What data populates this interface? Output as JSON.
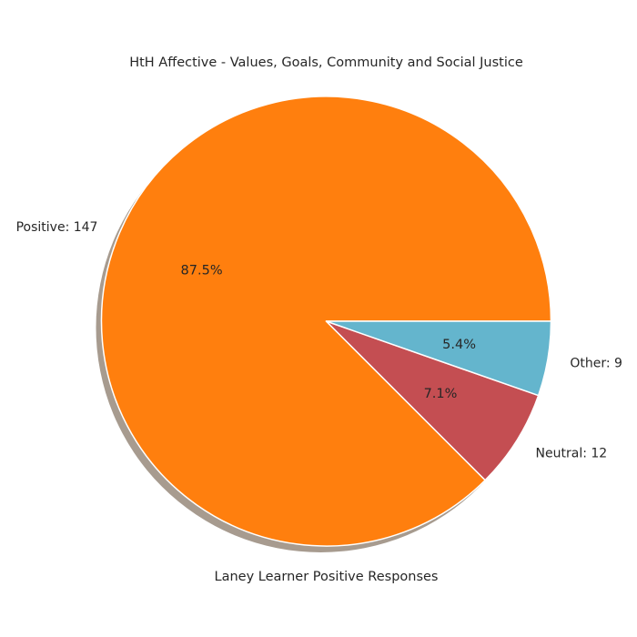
{
  "chart_data": {
    "type": "pie",
    "title": "HtH Affective - Values, Goals, Community and Social Justice",
    "xlabel": "Laney Learner Positive Responses",
    "slices": [
      {
        "label": "Positive: 147",
        "value": 147,
        "pct_label": "87.5%",
        "color": "#ff7f0e"
      },
      {
        "label": "Neutral: 12",
        "value": 12,
        "pct_label": "7.1%",
        "color": "#c44e52"
      },
      {
        "label": "Other: 9",
        "value": 9,
        "pct_label": "5.4%",
        "color": "#64b5cd"
      }
    ],
    "shadow": true
  }
}
